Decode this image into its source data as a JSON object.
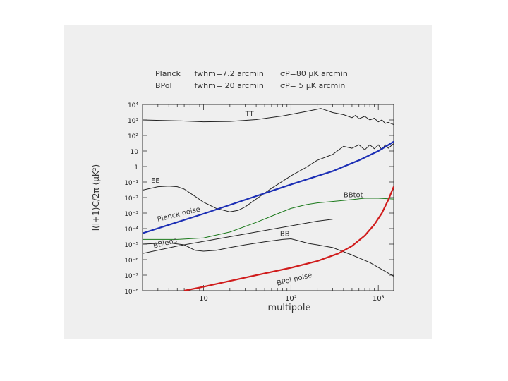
{
  "header": {
    "line1": {
      "name": "Planck",
      "fwhm": "fwhm=7.2 arcmin",
      "sigma": "σP=80 μK arcmin"
    },
    "line2": {
      "name": "BPol",
      "fwhm": "fwhm= 20 arcmin",
      "sigma": "σP= 5 μK arcmin"
    }
  },
  "chart_data": {
    "type": "line",
    "xscale": "log",
    "yscale": "log",
    "xlim": [
      2,
      1500
    ],
    "ylim": [
      1e-08,
      10000.0
    ],
    "xlabel": "multipole",
    "ylabel": "l(l+1)C/2π (μK²)",
    "xticks": [
      {
        "value": 10,
        "label": "10"
      },
      {
        "value": 100,
        "label": "10²"
      },
      {
        "value": 1000,
        "label": "10³"
      }
    ],
    "yticks": [
      {
        "value": 10000.0,
        "label": "10⁴"
      },
      {
        "value": 1000.0,
        "label": "10³"
      },
      {
        "value": 100.0,
        "label": "10²"
      },
      {
        "value": 10.0,
        "label": "10"
      },
      {
        "value": 1,
        "label": "1"
      },
      {
        "value": 0.1,
        "label": "10⁻¹"
      },
      {
        "value": 0.01,
        "label": "10⁻²"
      },
      {
        "value": 0.001,
        "label": "10⁻³"
      },
      {
        "value": 0.0001,
        "label": "10⁻⁴"
      },
      {
        "value": 1e-05,
        "label": "10⁻⁵"
      },
      {
        "value": 1e-06,
        "label": "10⁻⁶"
      },
      {
        "value": 1e-07,
        "label": "10⁻⁷"
      },
      {
        "value": 1e-08,
        "label": "10⁻⁸"
      }
    ],
    "series": [
      {
        "name": "TT",
        "label": "TT",
        "label_at": [
          30,
          1800
        ],
        "color": "#222222",
        "width": 1,
        "x": [
          2,
          5,
          10,
          20,
          40,
          80,
          150,
          220,
          300,
          400,
          500,
          550,
          600,
          700,
          800,
          900,
          1000,
          1100,
          1200,
          1300,
          1500
        ],
        "y": [
          1000,
          880,
          760,
          800,
          1050,
          1800,
          3500,
          5500,
          3000,
          2200,
          1400,
          2000,
          1200,
          1700,
          1000,
          1300,
          750,
          1000,
          600,
          700,
          500
        ]
      },
      {
        "name": "EE",
        "label": "EE",
        "label_at": [
          2.5,
          0.09
        ],
        "color": "#222222",
        "width": 1,
        "x": [
          2,
          3,
          4,
          5,
          6,
          8,
          10,
          14,
          20,
          25,
          30,
          40,
          60,
          100,
          150,
          200,
          300,
          400,
          500,
          600,
          700,
          800,
          900,
          1000,
          1100,
          1200,
          1300,
          1500
        ],
        "y": [
          0.03,
          0.05,
          0.055,
          0.05,
          0.035,
          0.012,
          0.005,
          0.002,
          0.0012,
          0.0015,
          0.0025,
          0.008,
          0.04,
          0.25,
          0.9,
          2.5,
          6,
          20,
          15,
          25,
          12,
          25,
          14,
          25,
          12,
          25,
          15,
          30
        ]
      },
      {
        "name": "Planck noise",
        "label": "Planck noise",
        "label_at": [
          3,
          0.00028
        ],
        "label_rotate": -14,
        "color": "#1c2fb5",
        "width": 2.2,
        "x": [
          2,
          10,
          100,
          300,
          600,
          1000,
          1500
        ],
        "y": [
          5e-05,
          0.0009,
          0.07,
          0.5,
          2.5,
          10,
          40
        ]
      },
      {
        "name": "BB_tot",
        "label": "BBtot",
        "label_at": [
          400,
          0.0105
        ],
        "color": "#1c7a1c",
        "width": 1,
        "x": [
          2,
          5,
          10,
          20,
          40,
          70,
          100,
          150,
          200,
          400,
          700,
          1000,
          1500
        ],
        "y": [
          2e-05,
          2e-05,
          2.5e-05,
          6e-05,
          0.00025,
          0.0009,
          0.002,
          0.0035,
          0.0045,
          0.0065,
          0.009,
          0.009,
          0.008
        ]
      },
      {
        "name": "BB",
        "label": "BB",
        "label_at": [
          75,
          3.4e-05
        ],
        "color": "#222222",
        "width": 1,
        "x": [
          2,
          4,
          6,
          8,
          10,
          14,
          20,
          30,
          50,
          80,
          100,
          130,
          160,
          200,
          300,
          500,
          800,
          1500
        ],
        "y": [
          1e-05,
          1.2e-05,
          9e-06,
          4e-06,
          3.5e-06,
          4e-06,
          6e-06,
          9e-06,
          1.4e-05,
          2e-05,
          2.2e-05,
          1.5e-05,
          1.1e-05,
          9e-06,
          6e-06,
          2e-06,
          6.5e-07,
          8.5e-08
        ]
      },
      {
        "name": "BB_lens",
        "label": "BBlens",
        "label_at": [
          2.7,
          5.5e-06
        ],
        "label_rotate": -14,
        "color": "#222222",
        "width": 1,
        "x": [
          2,
          5,
          10,
          30,
          100,
          200,
          300
        ],
        "y": [
          2.5e-06,
          7.5e-06,
          1.5e-05,
          4.5e-05,
          0.00015,
          0.0003,
          0.0004
        ]
      },
      {
        "name": "BPol noise",
        "label": "BPol noise",
        "label_at": [
          70,
          2.1e-08
        ],
        "label_rotate": -14,
        "color": "#d01c1c",
        "width": 2.2,
        "x": [
          6,
          10,
          30,
          100,
          200,
          350,
          500,
          700,
          900,
          1100,
          1300,
          1500
        ],
        "y": [
          1e-08,
          1.8e-08,
          7e-08,
          3e-07,
          8e-07,
          2.5e-06,
          7.5e-06,
          3.5e-05,
          0.00018,
          0.001,
          0.007,
          0.05
        ]
      }
    ]
  }
}
